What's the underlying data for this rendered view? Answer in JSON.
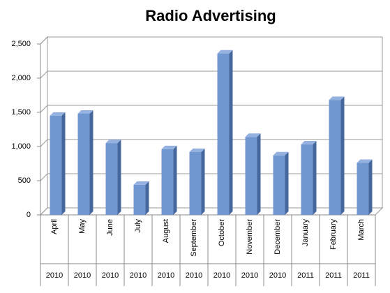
{
  "chart_data": {
    "type": "bar3d",
    "title": "Radio Advertising",
    "categories": [
      "April",
      "May",
      "June",
      "July",
      "August",
      "September",
      "October",
      "November",
      "December",
      "January",
      "February",
      "March"
    ],
    "years": [
      "2010",
      "2010",
      "2010",
      "2010",
      "2010",
      "2010",
      "2010",
      "2010",
      "2010",
      "2011",
      "2011",
      "2011"
    ],
    "values": [
      1450,
      1480,
      1050,
      440,
      960,
      920,
      2360,
      1140,
      870,
      1030,
      1680,
      760
    ],
    "color": "#7197d1",
    "ylim": [
      0,
      2500
    ],
    "yticks": [
      0,
      500,
      {
        "value": 1000,
        "label": "1,000"
      },
      {
        "value": 1500,
        "label": "1,500"
      },
      {
        "value": 2000,
        "label": "2,000"
      },
      {
        "value": 2500,
        "label": "2,500"
      }
    ],
    "grid": true
  }
}
